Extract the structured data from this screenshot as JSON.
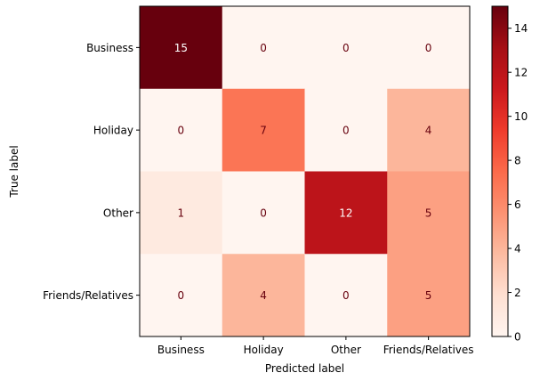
{
  "chart_data": {
    "type": "heatmap",
    "title": "",
    "xlabel": "Predicted label",
    "ylabel": "True label",
    "x_categories": [
      "Business",
      "Holiday",
      "Other",
      "Friends/Relatives"
    ],
    "y_categories": [
      "Business",
      "Holiday",
      "Other",
      "Friends/Relatives"
    ],
    "matrix": [
      [
        15,
        0,
        0,
        0
      ],
      [
        0,
        7,
        0,
        4
      ],
      [
        1,
        0,
        12,
        5
      ],
      [
        0,
        4,
        0,
        5
      ]
    ],
    "colormap": "Reds",
    "value_range": [
      0,
      15
    ],
    "colorbar_ticks": [
      0,
      2,
      4,
      6,
      8,
      10,
      12,
      14
    ],
    "grid": false,
    "text_dark_color": "#67000d",
    "text_light_color": "#ffffff"
  }
}
